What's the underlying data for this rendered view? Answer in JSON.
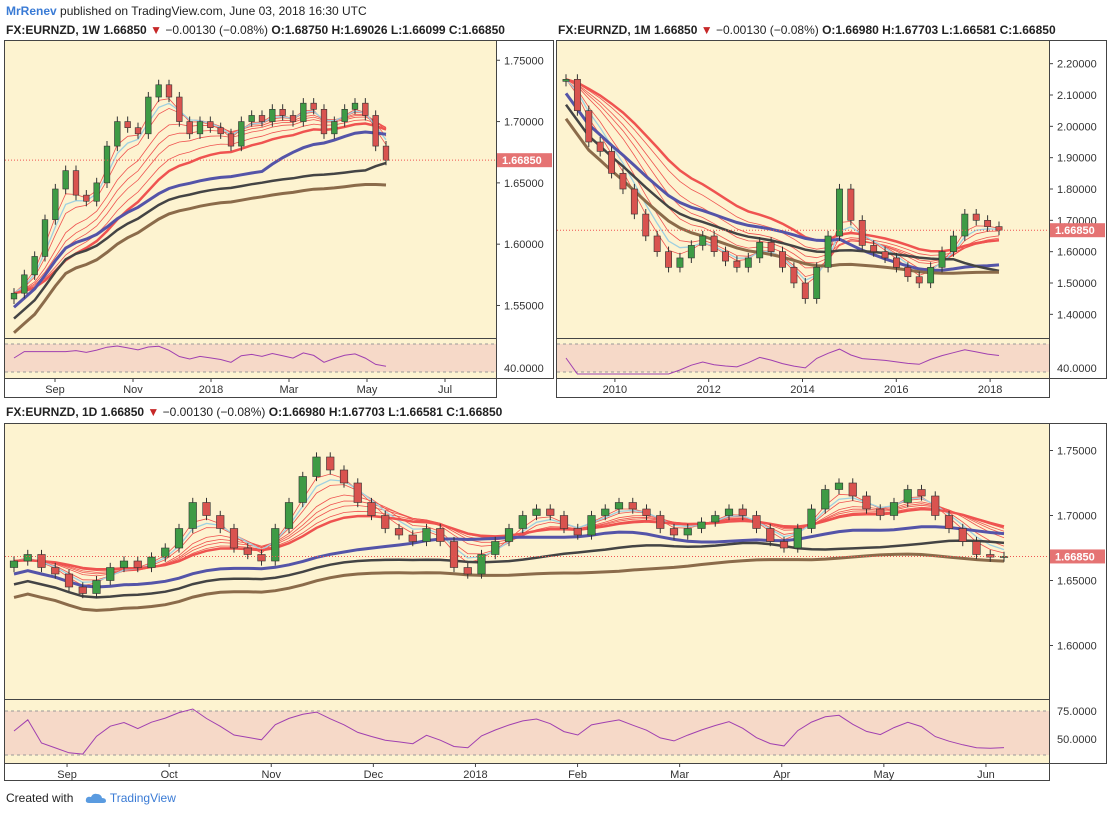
{
  "header": {
    "author": "MrRenev",
    "published": "published on TradingView.com, June 03, 2018 16:30 UTC"
  },
  "colors": {
    "up": "#3e9b45",
    "down": "#d9534f",
    "ema_fast": "#ef5350",
    "sma_blue": "#5454a8",
    "sma_dark": "#444444",
    "sma_brown": "#8b6b4a",
    "rsi": "#a040b0",
    "price_tag": "#e57373"
  },
  "charts": {
    "weekly": {
      "symbol": "FX:EURNZD, 1W",
      "price": "1.66850",
      "change": "−0.00130 (−0.08%)",
      "o": "O:1.68750",
      "h": "H:1.69026",
      "l": "L:1.66099",
      "c": "C:1.66850",
      "price_tag": "1.66850",
      "y_ticks": [
        "1.75000",
        "1.70000",
        "1.65000",
        "1.60000",
        "1.55000"
      ],
      "rsi_tick": "40.0000",
      "x_ticks": [
        "Sep",
        "Nov",
        "2018",
        "Mar",
        "May",
        "Jul"
      ]
    },
    "monthly": {
      "symbol": "FX:EURNZD, 1M",
      "price": "1.66850",
      "change": "−0.00130 (−0.08%)",
      "o": "O:1.66980",
      "h": "H:1.67703",
      "l": "L:1.66581",
      "c": "C:1.66850",
      "price_tag": "1.66850",
      "y_ticks": [
        "2.20000",
        "2.10000",
        "2.00000",
        "1.90000",
        "1.80000",
        "1.70000",
        "1.60000",
        "1.50000",
        "1.40000"
      ],
      "rsi_tick": "40.0000",
      "x_ticks": [
        "2010",
        "2012",
        "2014",
        "2016",
        "2018"
      ]
    },
    "daily": {
      "symbol": "FX:EURNZD, 1D",
      "price": "1.66850",
      "change": "−0.00130 (−0.08%)",
      "o": "O:1.66980",
      "h": "H:1.67703",
      "l": "L:1.66581",
      "c": "C:1.66850",
      "price_tag": "1.66850",
      "y_ticks": [
        "1.75000",
        "1.70000",
        "1.65000",
        "1.60000"
      ],
      "rsi_ticks": [
        "75.0000",
        "50.0000"
      ],
      "x_ticks": [
        "Sep",
        "Oct",
        "Nov",
        "Dec",
        "2018",
        "Feb",
        "Mar",
        "Apr",
        "May",
        "Jun"
      ]
    }
  },
  "chart_data": [
    {
      "type": "candlestick",
      "title": "FX:EURNZD, 1W",
      "x_range": [
        "2017-07",
        "2018-07"
      ],
      "ylim": [
        1.53,
        1.76
      ],
      "close_series": [
        1.56,
        1.575,
        1.59,
        1.62,
        1.645,
        1.66,
        1.64,
        1.635,
        1.65,
        1.68,
        1.7,
        1.695,
        1.69,
        1.72,
        1.73,
        1.72,
        1.7,
        1.69,
        1.7,
        1.695,
        1.69,
        1.68,
        1.7,
        1.705,
        1.7,
        1.71,
        1.705,
        1.7,
        1.715,
        1.71,
        1.69,
        1.7,
        1.71,
        1.715,
        1.705,
        1.68,
        1.6685
      ],
      "rsi_range": [
        30,
        70
      ]
    },
    {
      "type": "candlestick",
      "title": "FX:EURNZD, 1M",
      "x_range": [
        "2009",
        "2018-06"
      ],
      "ylim": [
        1.35,
        2.25
      ],
      "close_series": [
        2.15,
        2.05,
        1.95,
        1.92,
        1.85,
        1.8,
        1.72,
        1.65,
        1.6,
        1.55,
        1.58,
        1.62,
        1.65,
        1.6,
        1.57,
        1.55,
        1.58,
        1.63,
        1.6,
        1.55,
        1.5,
        1.45,
        1.55,
        1.65,
        1.8,
        1.7,
        1.62,
        1.6,
        1.58,
        1.55,
        1.52,
        1.5,
        1.55,
        1.6,
        1.65,
        1.72,
        1.7,
        1.68,
        1.6685
      ],
      "rsi_range": [
        30,
        70
      ]
    },
    {
      "type": "candlestick",
      "title": "FX:EURNZD, 1D",
      "x_range": [
        "2017-08-25",
        "2018-06-01"
      ],
      "ylim": [
        1.565,
        1.765
      ],
      "close_series": [
        1.665,
        1.67,
        1.66,
        1.655,
        1.645,
        1.64,
        1.65,
        1.66,
        1.665,
        1.66,
        1.668,
        1.675,
        1.69,
        1.71,
        1.7,
        1.69,
        1.675,
        1.67,
        1.665,
        1.69,
        1.71,
        1.73,
        1.745,
        1.735,
        1.725,
        1.71,
        1.7,
        1.69,
        1.685,
        1.68,
        1.69,
        1.68,
        1.66,
        1.655,
        1.67,
        1.68,
        1.69,
        1.7,
        1.705,
        1.7,
        1.69,
        1.685,
        1.7,
        1.705,
        1.71,
        1.705,
        1.7,
        1.69,
        1.685,
        1.69,
        1.695,
        1.7,
        1.705,
        1.7,
        1.69,
        1.68,
        1.675,
        1.69,
        1.705,
        1.72,
        1.725,
        1.715,
        1.705,
        1.7,
        1.71,
        1.72,
        1.715,
        1.7,
        1.69,
        1.68,
        1.67,
        1.668,
        1.6685
      ],
      "rsi_ticks": [
        75,
        50
      ]
    }
  ]
}
